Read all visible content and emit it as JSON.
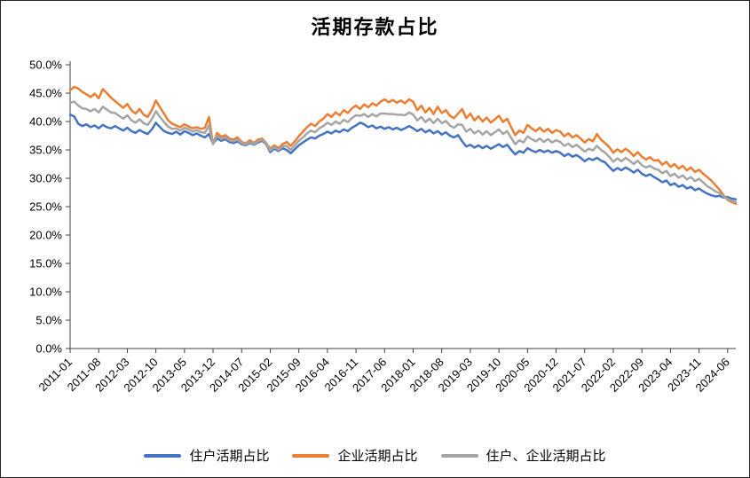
{
  "page": {
    "background": "#ffffff",
    "border_color": "#262626"
  },
  "chart_data": {
    "type": "line",
    "title": "活期存款占比",
    "xlabel": "",
    "ylabel": "",
    "ylim": [
      0,
      50
    ],
    "grid": false,
    "legend_position": "bottom",
    "axis_color": "#404040",
    "text_color": "#000000",
    "y_tick_labels": [
      "0.0%",
      "5.0%",
      "10.0%",
      "15.0%",
      "20.0%",
      "25.0%",
      "30.0%",
      "35.0%",
      "40.0%",
      "45.0%",
      "50.0%"
    ],
    "x_tick_labels": [
      "2011-01",
      "2011-08",
      "2012-03",
      "2012-10",
      "2013-05",
      "2013-12",
      "2014-07",
      "2015-02",
      "2015-09",
      "2016-04",
      "2016-11",
      "2017-06",
      "2018-01",
      "2018-08",
      "2019-03",
      "2019-10",
      "2020-05",
      "2020-12",
      "2021-07",
      "2022-02",
      "2022-09",
      "2023-04",
      "2023-11",
      "2024-06"
    ],
    "x_tick_interval": 7,
    "series": [
      {
        "name": "住户活期占比",
        "color": "#4472C4",
        "values": [
          41.2,
          40.9,
          39.6,
          39.2,
          39.5,
          39.0,
          39.3,
          38.8,
          39.4,
          39.0,
          38.8,
          39.2,
          38.8,
          38.4,
          38.9,
          38.3,
          38.0,
          38.5,
          38.1,
          37.8,
          38.6,
          39.8,
          39.0,
          38.3,
          38.0,
          37.8,
          38.2,
          37.7,
          38.3,
          38.0,
          37.6,
          37.9,
          37.5,
          37.2,
          37.8,
          36.1,
          37.0,
          36.6,
          36.9,
          36.4,
          36.2,
          36.5,
          36.0,
          35.8,
          36.2,
          35.9,
          36.3,
          36.6,
          36.0,
          34.6,
          35.2,
          34.8,
          35.3,
          35.0,
          34.4,
          35.1,
          35.8,
          36.3,
          36.8,
          37.2,
          37.0,
          37.5,
          37.8,
          38.2,
          37.9,
          38.4,
          38.1,
          38.6,
          38.3,
          38.9,
          39.3,
          39.8,
          39.5,
          39.0,
          39.3,
          38.8,
          39.1,
          38.7,
          39.0,
          38.6,
          38.9,
          38.5,
          38.8,
          39.2,
          38.8,
          38.3,
          38.7,
          38.1,
          38.5,
          37.9,
          38.3,
          37.7,
          38.1,
          37.5,
          37.2,
          37.6,
          36.5,
          35.6,
          35.9,
          35.4,
          35.8,
          35.3,
          35.7,
          35.2,
          35.6,
          36.0,
          35.5,
          35.9,
          35.0,
          34.2,
          34.8,
          34.5,
          35.3,
          34.9,
          34.6,
          35.0,
          34.6,
          34.9,
          34.5,
          34.8,
          34.5,
          33.9,
          34.3,
          33.8,
          34.1,
          33.6,
          33.0,
          33.5,
          33.2,
          33.6,
          33.1,
          32.8,
          32.0,
          31.3,
          31.8,
          31.4,
          31.9,
          31.5,
          31.0,
          31.5,
          30.8,
          30.4,
          30.7,
          30.2,
          29.8,
          29.3,
          29.6,
          28.8,
          29.1,
          28.5,
          28.8,
          28.2,
          28.5,
          27.9,
          28.2,
          27.7,
          27.3,
          27.0,
          26.8,
          26.9,
          26.6,
          26.7,
          26.4,
          26.3
        ]
      },
      {
        "name": "企业活期占比",
        "color": "#ED7D31",
        "values": [
          45.5,
          46.1,
          45.8,
          45.2,
          44.8,
          44.3,
          44.9,
          44.1,
          45.7,
          45.0,
          44.2,
          43.6,
          43.0,
          42.4,
          43.1,
          42.0,
          41.4,
          42.2,
          41.2,
          40.8,
          42.0,
          43.7,
          42.5,
          41.4,
          40.2,
          39.6,
          39.3,
          39.0,
          39.5,
          39.1,
          38.8,
          39.0,
          38.7,
          38.9,
          40.8,
          36.0,
          38.0,
          37.3,
          37.6,
          37.0,
          36.8,
          37.2,
          36.4,
          36.1,
          36.7,
          36.2,
          36.8,
          37.0,
          36.2,
          35.2,
          35.8,
          35.3,
          36.0,
          36.4,
          35.7,
          36.5,
          37.4,
          38.2,
          39.0,
          39.6,
          39.2,
          40.0,
          40.5,
          41.3,
          40.8,
          41.6,
          41.1,
          42.0,
          41.5,
          42.3,
          42.8,
          42.2,
          43.0,
          42.5,
          43.2,
          42.8,
          43.5,
          43.9,
          43.4,
          43.8,
          43.3,
          43.7,
          43.2,
          43.9,
          43.5,
          42.0,
          42.8,
          41.6,
          42.4,
          41.3,
          42.6,
          41.5,
          42.0,
          41.0,
          40.6,
          41.4,
          42.2,
          40.6,
          41.4,
          40.2,
          40.9,
          40.0,
          40.7,
          39.8,
          40.4,
          41.0,
          39.9,
          40.5,
          39.0,
          37.6,
          38.4,
          38.0,
          39.4,
          38.8,
          38.3,
          38.9,
          38.2,
          38.7,
          38.0,
          38.5,
          38.2,
          37.4,
          37.9,
          37.2,
          37.6,
          37.0,
          36.3,
          36.9,
          36.5,
          37.8,
          36.8,
          36.2,
          35.5,
          34.5,
          35.1,
          34.6,
          35.2,
          34.7,
          33.9,
          34.6,
          33.8,
          33.3,
          33.7,
          33.1,
          33.2,
          32.4,
          32.9,
          32.0,
          32.5,
          31.7,
          32.2,
          31.4,
          31.9,
          31.1,
          31.5,
          30.8,
          30.2,
          29.6,
          28.8,
          28.0,
          27.0,
          26.2,
          25.8,
          25.5
        ]
      },
      {
        "name": "住户、企业活期占比",
        "color": "#A5A5A5",
        "values": [
          43.3,
          43.5,
          42.8,
          42.3,
          42.2,
          41.8,
          42.2,
          41.6,
          42.6,
          42.1,
          41.6,
          41.5,
          41.0,
          40.5,
          41.1,
          40.2,
          39.8,
          40.4,
          39.7,
          39.4,
          40.4,
          41.8,
          40.8,
          39.9,
          39.1,
          38.7,
          38.8,
          38.4,
          38.9,
          38.6,
          38.2,
          38.5,
          38.1,
          38.0,
          39.3,
          36.0,
          37.5,
          36.9,
          37.2,
          36.7,
          36.5,
          36.8,
          36.2,
          35.9,
          36.4,
          36.0,
          36.5,
          36.8,
          36.1,
          34.9,
          35.5,
          35.0,
          35.6,
          35.7,
          35.0,
          35.8,
          36.6,
          37.2,
          37.9,
          38.4,
          38.1,
          38.8,
          39.2,
          39.8,
          39.4,
          40.0,
          39.6,
          40.3,
          39.9,
          40.6,
          41.1,
          41.0,
          41.3,
          40.8,
          41.3,
          40.9,
          41.4,
          41.4,
          41.3,
          41.3,
          41.2,
          41.2,
          41.1,
          41.6,
          41.2,
          40.2,
          40.8,
          39.9,
          40.5,
          39.7,
          40.5,
          39.7,
          40.1,
          39.3,
          38.9,
          39.5,
          39.4,
          38.2,
          38.7,
          37.9,
          38.4,
          37.7,
          38.3,
          37.6,
          38.1,
          38.6,
          37.8,
          38.3,
          37.1,
          36.0,
          36.7,
          36.3,
          37.4,
          36.9,
          36.5,
          37.0,
          36.4,
          36.9,
          36.3,
          36.7,
          36.4,
          35.7,
          36.1,
          35.5,
          35.9,
          35.3,
          34.7,
          35.2,
          34.9,
          35.7,
          35.0,
          34.5,
          33.8,
          32.9,
          33.5,
          33.0,
          33.6,
          33.1,
          32.5,
          33.1,
          32.3,
          31.9,
          32.2,
          31.7,
          31.5,
          30.9,
          31.3,
          30.4,
          30.8,
          30.1,
          30.5,
          29.8,
          30.2,
          29.5,
          29.9,
          29.3,
          28.6,
          28.2,
          27.7,
          27.4,
          26.8,
          26.4,
          26.0,
          25.8
        ]
      }
    ]
  }
}
